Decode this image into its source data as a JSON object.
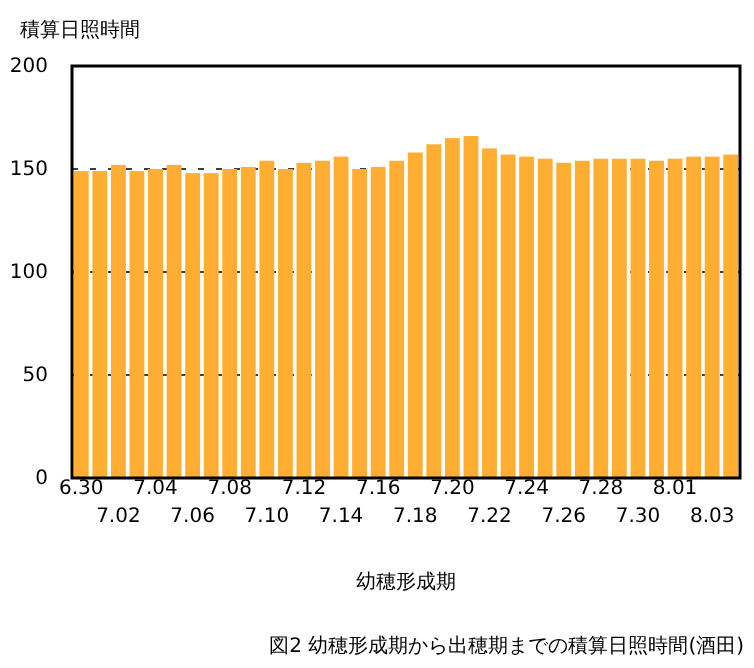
{
  "chart_data": {
    "type": "bar",
    "title": "図2 幼穂形成期から出穂期までの積算日照時間(酒田)",
    "xlabel": "幼穂形成期",
    "ylabel": "積算日照時間",
    "categories": [
      "6.30",
      null,
      "7.02",
      null,
      "7.04",
      null,
      "7.06",
      null,
      "7.08",
      null,
      "7.10",
      null,
      "7.12",
      null,
      "7.14",
      null,
      "7.16",
      null,
      "7.18",
      null,
      "7.20",
      null,
      "7.22",
      null,
      "7.24",
      null,
      "7.26",
      null,
      "7.28",
      null,
      "7.30",
      null,
      "8.01",
      null,
      "8.03",
      null
    ],
    "values": [
      149,
      149,
      152,
      149,
      150,
      152,
      148,
      148,
      150,
      151,
      154,
      150,
      153,
      154,
      156,
      150,
      151,
      154,
      158,
      162,
      165,
      166,
      160,
      157,
      156,
      155,
      153,
      154,
      155,
      155,
      155,
      154,
      155,
      156,
      156,
      157
    ],
    "color": "#ffad33",
    "ylim": [
      0,
      200
    ],
    "yticks": [
      0,
      50,
      100,
      150,
      200
    ],
    "grid": "y"
  }
}
